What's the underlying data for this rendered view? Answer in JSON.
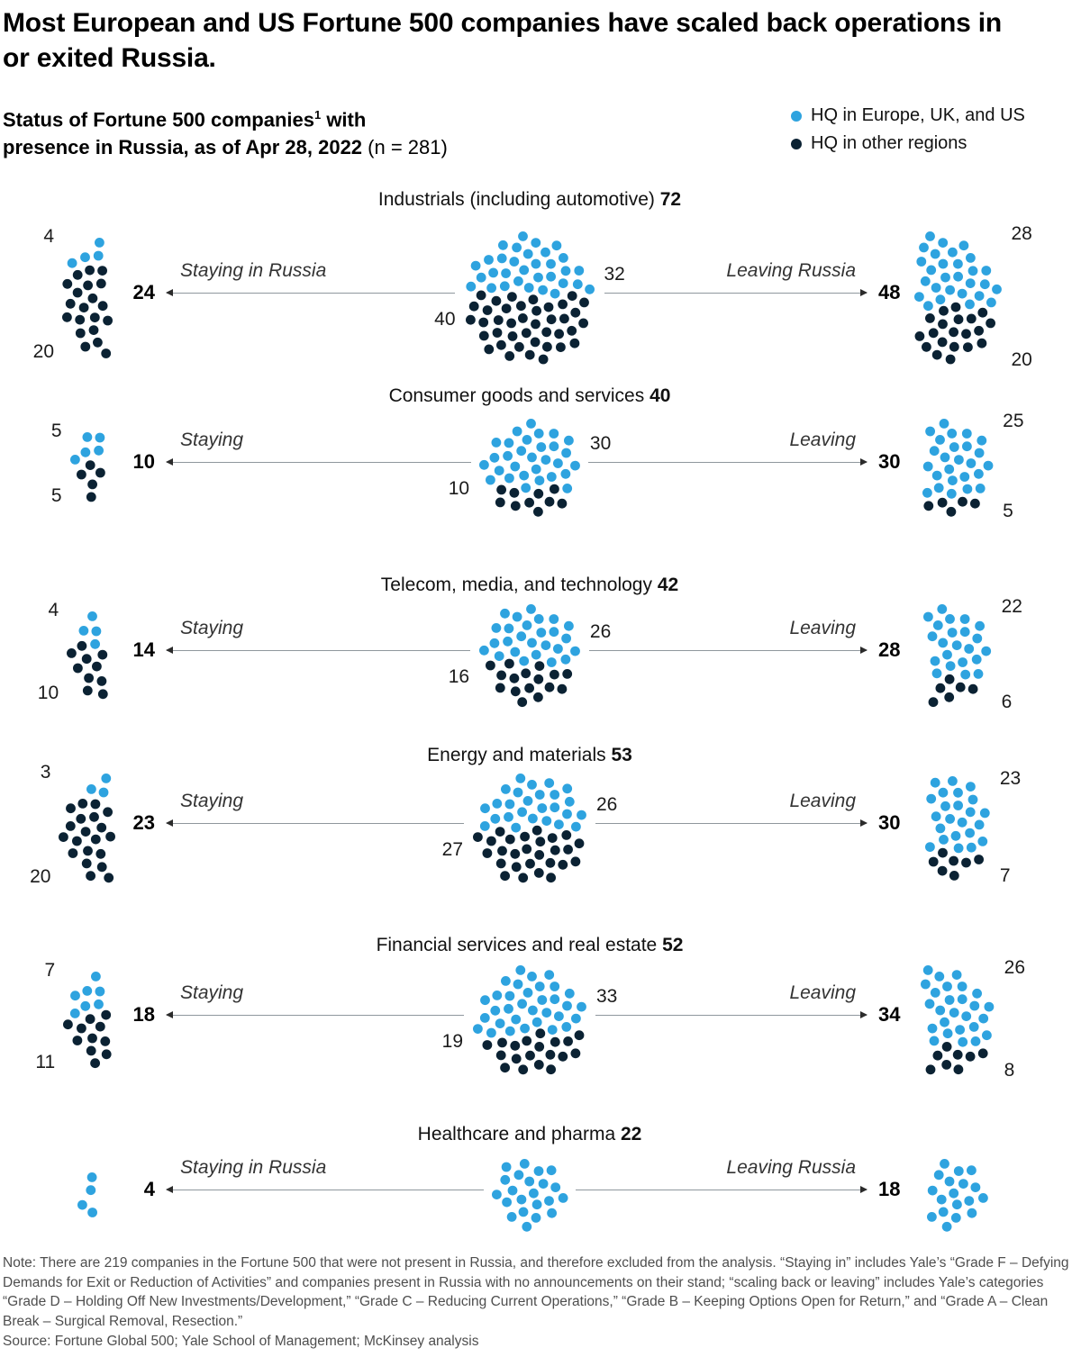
{
  "chart_data": {
    "type": "unit-dot",
    "title_line1": "Most European and US Fortune 500 companies have scaled back operations in",
    "title_line2": "or exited Russia.",
    "subtitle": {
      "bold1": "Status of Fortune 500 companies",
      "sup": "1",
      "bold2": " with",
      "line2_bold": "presence in Russia, as of Apr 28, 2022",
      "line2_regular": " (n = 281)"
    },
    "n_total": 281,
    "legend": [
      {
        "label": "HQ in Europe, UK, and US",
        "color": "#2EA3DF"
      },
      {
        "label": "HQ in other regions",
        "color": "#0B2233"
      }
    ],
    "colors": {
      "europe": "#2EA3DF",
      "other": "#0B2233"
    },
    "sections": [
      {
        "title": "Industrials (including automotive)",
        "total": 72,
        "staying_label": "Staying in Russia",
        "leaving_label": "Leaving Russia",
        "present": {
          "europe": 32,
          "other": 40
        },
        "staying": {
          "total": 24,
          "europe": 4,
          "other": 20
        },
        "leaving": {
          "total": 48,
          "europe": 28,
          "other": 20
        }
      },
      {
        "title": "Consumer goods and services",
        "total": 40,
        "staying_label": "Staying",
        "leaving_label": "Leaving",
        "present": {
          "europe": 30,
          "other": 10
        },
        "staying": {
          "total": 10,
          "europe": 5,
          "other": 5
        },
        "leaving": {
          "total": 30,
          "europe": 25,
          "other": 5
        }
      },
      {
        "title": "Telecom, media, and technology",
        "total": 42,
        "staying_label": "Staying",
        "leaving_label": "Leaving",
        "present": {
          "europe": 26,
          "other": 16
        },
        "staying": {
          "total": 14,
          "europe": 4,
          "other": 10
        },
        "leaving": {
          "total": 28,
          "europe": 22,
          "other": 6
        }
      },
      {
        "title": "Energy and materials",
        "total": 53,
        "staying_label": "Staying",
        "leaving_label": "Leaving",
        "present": {
          "europe": 26,
          "other": 27
        },
        "staying": {
          "total": 23,
          "europe": 3,
          "other": 20
        },
        "leaving": {
          "total": 30,
          "europe": 23,
          "other": 7
        }
      },
      {
        "title": "Financial services and real estate",
        "total": 52,
        "staying_label": "Staying",
        "leaving_label": "Leaving",
        "present": {
          "europe": 33,
          "other": 19
        },
        "staying": {
          "total": 18,
          "europe": 7,
          "other": 11
        },
        "leaving": {
          "total": 34,
          "europe": 26,
          "other": 8
        }
      },
      {
        "title": "Healthcare and pharma",
        "total": 22,
        "staying_label": "Staying in Russia",
        "leaving_label": "Leaving Russia",
        "present": {
          "europe": 22,
          "other": 0
        },
        "staying": {
          "total": 4,
          "europe": 4,
          "other": 0
        },
        "leaving": {
          "total": 18,
          "europe": 18,
          "other": 0
        }
      }
    ],
    "note": "Note: There are 219 companies in the Fortune 500 that were not present in Russia, and therefore excluded from the analysis. “Staying in” includes Yale’s “Grade F – Defying Demands for Exit or Reduction of Activities” and companies present in Russia with no announcements on their stand; “scaling back or leaving” includes Yale’s categories “Grade D – Holding Off New Investments/Development,” “Grade C – Reducing Current Operations,” “Grade B – Keeping Options Open for Return,” and “Grade A – Clean Break – Surgical Removal, Resection.”",
    "source": "Source: Fortune Global 500; Yale School of Management; McKinsey analysis"
  }
}
